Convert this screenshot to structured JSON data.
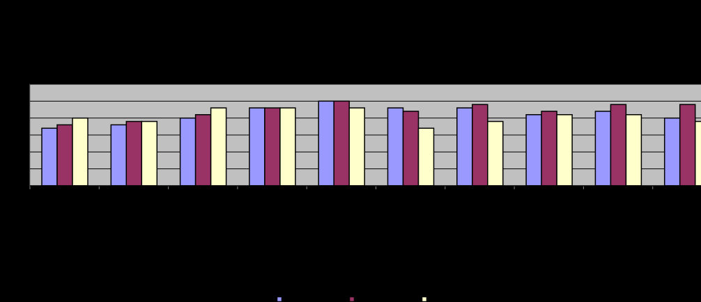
{
  "chart_data": {
    "type": "bar",
    "categories": [
      null,
      null,
      null,
      null,
      null,
      null,
      null,
      null,
      null,
      null
    ],
    "series": [
      {
        "color": "#9999ff",
        "values": [
          3.4,
          3.6,
          4.0,
          4.6,
          5.0,
          4.6,
          4.6,
          4.2,
          4.4,
          4.0
        ]
      },
      {
        "color": "#993366",
        "values": [
          3.6,
          3.8,
          4.2,
          4.6,
          5.0,
          4.4,
          4.8,
          4.4,
          4.8,
          4.8
        ]
      },
      {
        "color": "#ffffcc",
        "values": [
          4.0,
          3.8,
          4.6,
          4.6,
          4.6,
          3.4,
          3.8,
          4.2,
          4.2,
          3.8
        ]
      }
    ],
    "ylim": [
      0,
      6
    ],
    "yticks": [
      0,
      1,
      2,
      3,
      4,
      5,
      6
    ],
    "grid": true,
    "plot_color": "#c0c0c0",
    "background": "#000000"
  }
}
